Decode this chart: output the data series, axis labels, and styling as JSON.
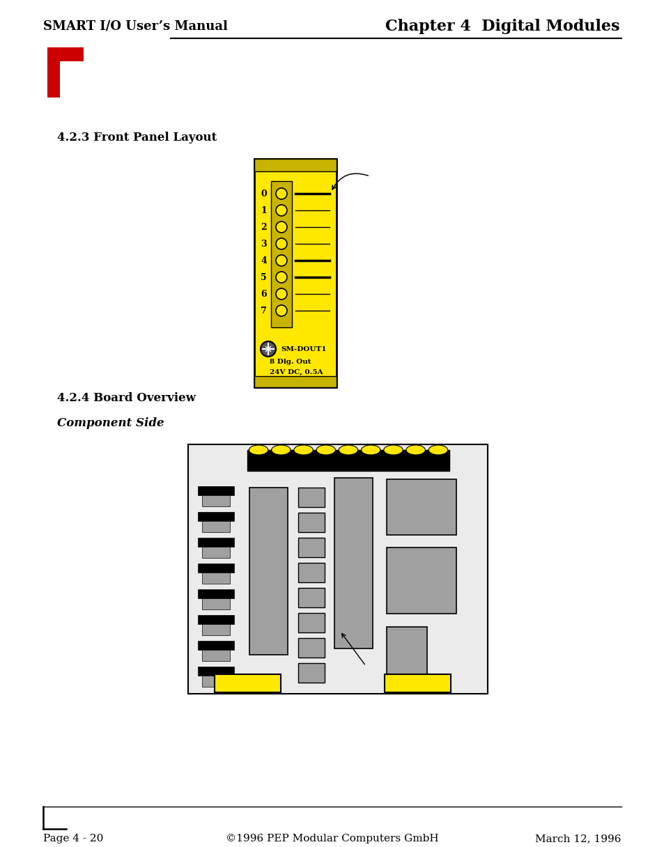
{
  "header_left": "SMART I/O User’s Manual",
  "header_right": "Chapter 4  Digital Modules",
  "section1_title": "4.2.3 Front Panel Layout",
  "section2_title": "4.2.4 Board Overview",
  "section3_title": "Component Side",
  "footer_left": "Page 4 - 20",
  "footer_center": "©1996 PEP Modular Computers GmbH",
  "footer_right": "March 12, 1996",
  "yellow": "#FFE800",
  "dark_yellow": "#C8B400",
  "black": "#000000",
  "gray": "#A0A0A0",
  "light_gray": "#EBEBEB",
  "white": "#FFFFFF",
  "red": "#CC0000",
  "bg": "#FFFFFF"
}
